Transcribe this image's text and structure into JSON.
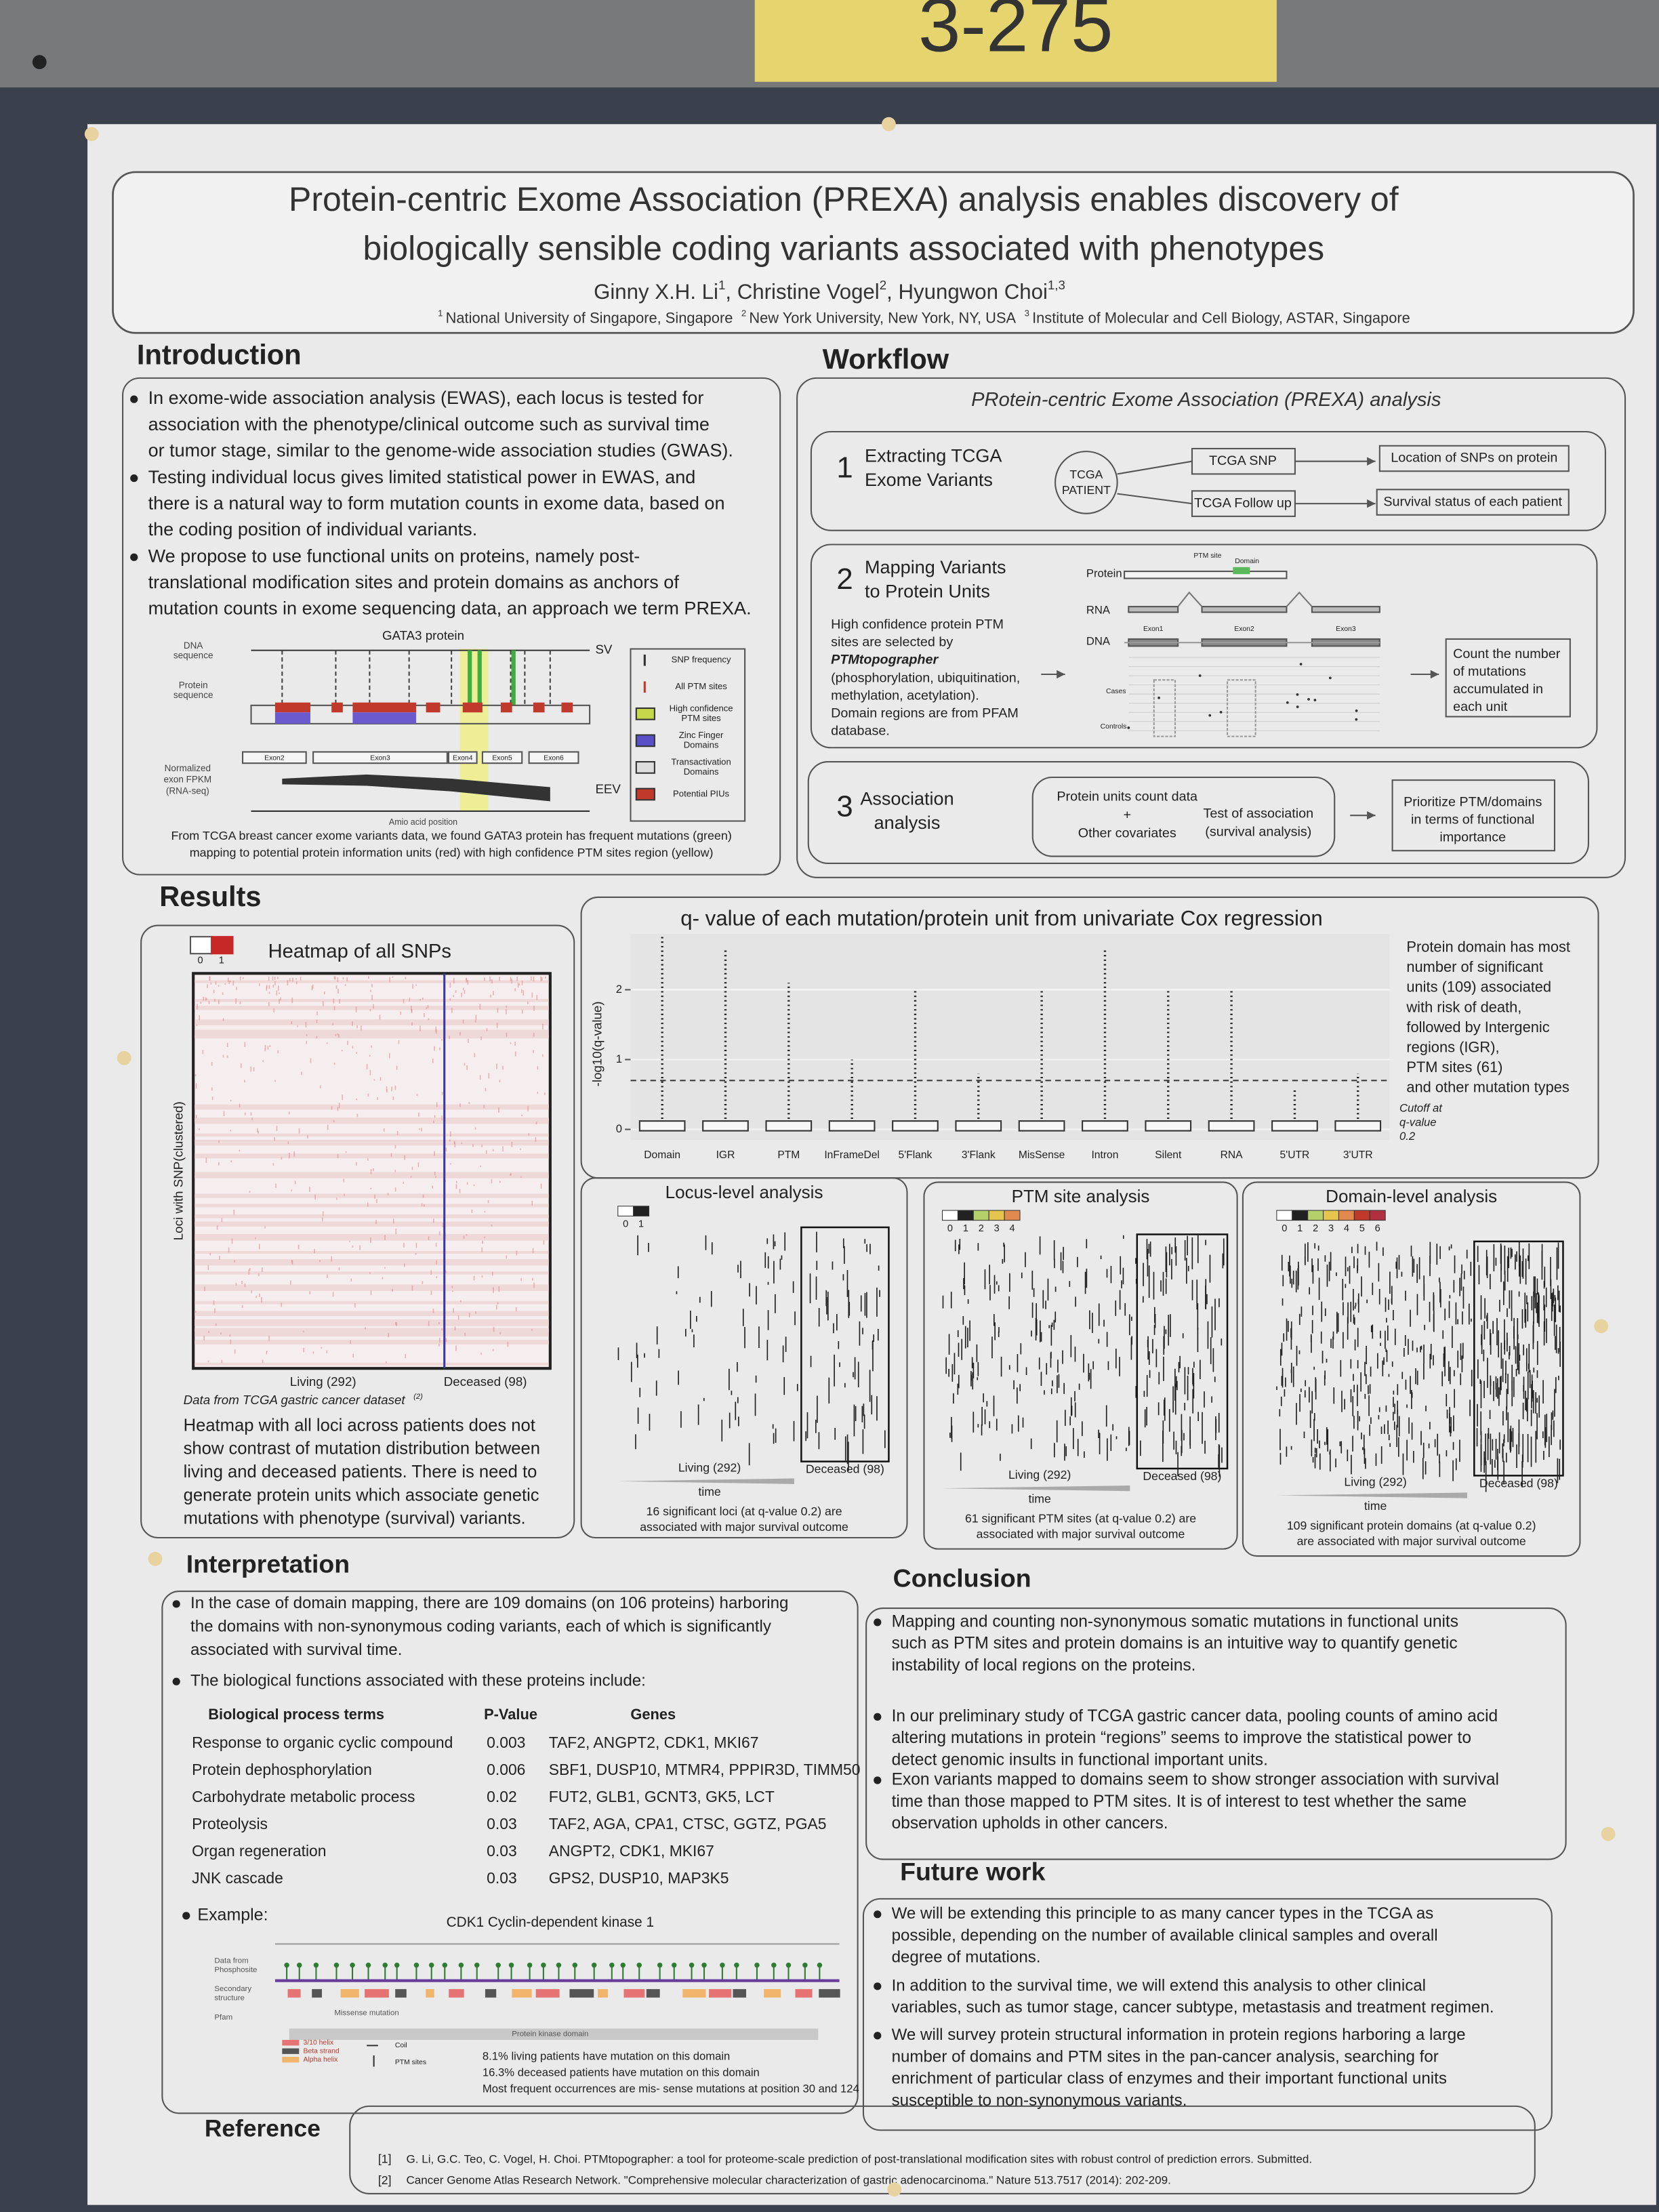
{
  "header": {
    "booth": "3-275",
    "title": [
      "Protein-centric Exome Association (PREXA) analysis enables discovery of",
      "biologically sensible coding variants associated with phenotypes"
    ],
    "authors": [
      {
        "name": "Ginny X.H. Li",
        "sup": "1"
      },
      {
        "name": ", Christine Vogel",
        "sup": "2"
      },
      {
        "name": ", Hyungwon Choi",
        "sup": "1,3"
      }
    ],
    "affiliations": [
      {
        "sup": "1",
        "text": "National University of Singapore, Singapore"
      },
      {
        "sup": "2",
        "text": "New York University, New York, NY, USA"
      },
      {
        "sup": "3",
        "text": "Institute of Molecular and Cell Biology, ASTAR, Singapore"
      }
    ]
  },
  "introduction": {
    "heading": "Introduction",
    "bullets": [
      [
        "In exome-wide association analysis (EWAS), each locus is tested for",
        "association with the phenotype/clinical outcome such as survival time",
        "or tumor stage, similar to the genome-wide association studies (GWAS)."
      ],
      [
        "Testing individual locus gives limited statistical power in EWAS, and",
        "there is a natural way to form mutation counts in exome data, based on",
        "the coding position of individual variants."
      ],
      [
        "We propose to use functional units on proteins, namely post-",
        "translational modification sites and protein domains as anchors of",
        "mutation counts in exome sequencing data, an approach we term PREXA."
      ]
    ],
    "figure": {
      "title": "GATA3 protein",
      "dna_label": [
        "DNA",
        "sequence"
      ],
      "protein_label": [
        "Protein",
        "sequence"
      ],
      "fpkm_label": [
        "Normalized",
        "exon FPKM",
        "(RNA-seq)"
      ],
      "sv_label": "SV",
      "eev_label": "EEV",
      "x_label": "Amio acid position",
      "exons": [
        "Exon2",
        "Exon3",
        "Exon4",
        "Exon5",
        "Exon6"
      ],
      "legend": [
        [
          "SNP frequency"
        ],
        [
          "All PTM sites"
        ],
        [
          "High confidence",
          "PTM sites"
        ],
        [
          "Zinc Finger",
          "Domains"
        ],
        [
          "Transactivation",
          "Domains"
        ],
        [
          "Potential PIUs"
        ]
      ],
      "caption": [
        "From TCGA breast cancer exome variants data, we found GATA3 protein has frequent mutations (green)",
        "mapping to potential protein information units (red) with high confidence PTM sites region (yellow)"
      ]
    }
  },
  "workflow": {
    "heading": "Workflow",
    "subtitle": "PRotein-centric Exome Association (PREXA) analysis",
    "step1": {
      "number": "1",
      "title": [
        "Extracting TCGA",
        "Exome Variants"
      ],
      "patient": [
        "TCGA",
        "PATIENT"
      ],
      "snp": "TCGA SNP",
      "follow_up": "TCGA Follow up",
      "snp_output": "Location of SNPs on protein",
      "follow_output": "Survival status of each patient"
    },
    "step2": {
      "number": "2",
      "title": [
        "Mapping Variants",
        "to Protein Units"
      ],
      "description": [
        "High confidence protein PTM",
        "sites are selected by"
      ],
      "tool": "PTMtopographer",
      "description2": [
        "(phosphorylation, ubiquitination,",
        "methylation, acetylation).",
        "Domain regions are from PFAM",
        "database."
      ],
      "protein": "Protein",
      "rna": "RNA",
      "dna": "DNA",
      "ptm_site": "PTM site",
      "domain": "Domain",
      "exons": [
        "Exon1",
        "Exon2",
        "Exon3"
      ],
      "cases": "Cases",
      "controls": "Controls",
      "output": [
        "Count the number",
        "of mutations",
        "accumulated in",
        "each unit"
      ]
    },
    "step3": {
      "number": "3",
      "title": [
        "Association",
        "analysis"
      ],
      "inputs": [
        "Protein units count data",
        "+",
        "Other covariates"
      ],
      "test": [
        "Test of association",
        "(survival analysis)"
      ],
      "output": [
        "Prioritize PTM/domains",
        "in terms of functional",
        "importance"
      ]
    }
  },
  "results": {
    "heading": "Results",
    "heatmap": {
      "title": "Heatmap of all SNPs",
      "scale": [
        "0",
        "1"
      ],
      "y_label": "Loci with SNP(clustered)",
      "living": "Living (292)",
      "deceased": "Deceased (98)",
      "source": "Data from TCGA gastric cancer dataset",
      "source_ref": "(2)",
      "text": [
        "Heatmap with all loci across patients does not",
        "show contrast of mutation distribution between",
        "living and deceased patients. There is need to",
        "generate protein units which associate genetic",
        "mutations with phenotype (survival) variants."
      ]
    },
    "qvalue": {
      "title": "q- value of each mutation/protein unit from univariate Cox regression",
      "y_label": "-log10(q-value)",
      "ylim": [
        -0.15,
        2.8
      ],
      "yticks": [
        0,
        1,
        2
      ],
      "categories": [
        "Domain",
        "IGR",
        "PTM",
        "InFrameDel",
        "5'Flank",
        "3'Flank",
        "MisSense",
        "Intron",
        "Silent",
        "RNA",
        "5'UTR",
        "3'UTR"
      ],
      "max_values": [
        2.8,
        2.6,
        2.1,
        1.0,
        2.0,
        0.8,
        2.0,
        2.6,
        2.0,
        2.0,
        0.6,
        0.8
      ],
      "cutoff_line": 0.7,
      "cutoff": [
        "Cutoff at",
        "q-value",
        "0.2"
      ],
      "note": [
        "Protein domain has most",
        "number of significant",
        "units (109) associated",
        "with risk of death,",
        "followed by Intergenic",
        "regions (IGR),",
        "PTM sites (61)",
        "and other mutation types"
      ]
    },
    "locus": {
      "title": "Locus-level analysis",
      "scale": [
        "0",
        "1"
      ],
      "living": "Living (292)",
      "deceased": "Deceased (98)",
      "time": "time",
      "caption": [
        "16 significant loci (at q-value 0.2) are",
        "associated with major survival outcome"
      ]
    },
    "ptm": {
      "title": "PTM site analysis",
      "scale": [
        "0",
        "1",
        "2",
        "3",
        "4"
      ],
      "living": "Living (292)",
      "deceased": "Deceased (98)",
      "time": "time",
      "caption": [
        "61 significant PTM sites (at q-value 0.2) are",
        "associated with major survival outcome"
      ]
    },
    "domain": {
      "title": "Domain-level analysis",
      "scale": [
        "0",
        "1",
        "2",
        "3",
        "4",
        "5",
        "6"
      ],
      "living": "Living (292)",
      "deceased": "Deceased (98)",
      "time": "time",
      "caption": [
        "109 significant protein domains (at q-value 0.2)",
        "are associated with major survival outcome"
      ]
    }
  },
  "interpretation": {
    "heading": "Interpretation",
    "bullets": [
      [
        "In the case of domain mapping, there are 109 domains (on 106 proteins) harboring",
        "the domains with non-synonymous coding variants, each of which is significantly",
        "associated with survival time."
      ],
      [
        "The biological functions associated with these proteins include:"
      ]
    ],
    "table": {
      "header": [
        "Biological process terms",
        "P-Value",
        "Genes"
      ],
      "rows": [
        [
          "Response to organic cyclic compound",
          "0.003",
          "TAF2, ANGPT2, CDK1, MKI67"
        ],
        [
          "Protein dephosphorylation",
          "0.006",
          "SBF1, DUSP10, MTMR4, PPPIR3D, TIMM50"
        ],
        [
          "Carbohydrate metabolic process",
          "0.02",
          "FUT2, GLB1, GCNT3, GK5, LCT"
        ],
        [
          "Proteolysis",
          "0.03",
          "TAF2, AGA, CPA1, CTSC, GGTZ, PGA5"
        ],
        [
          "Organ regeneration",
          "0.03",
          "ANGPT2, CDK1, MKI67"
        ],
        [
          "JNK cascade",
          "0.03",
          "GPS2, DUSP10, MAP3K5"
        ]
      ]
    },
    "example": {
      "label": "Example:",
      "title": "CDK1 Cyclin-dependent kinase 1",
      "row_labels": [
        [
          "Data from",
          "Phosphosite"
        ],
        [
          "Secondary",
          "structure"
        ],
        [
          "Pfam"
        ]
      ],
      "missense": "Missense mutation",
      "domain": "Protein kinase domain",
      "legend": [
        "3/10 helix",
        "Beta strand",
        "Alpha helix",
        "Coil",
        "PTM sites"
      ],
      "notes": [
        "8.1% living patients have mutation on this domain",
        "16.3% deceased patients have mutation on this domain",
        "Most frequent occurrences are mis- sense mutations at position 30 and 124"
      ]
    }
  },
  "conclusion": {
    "heading": "Conclusion",
    "bullets": [
      [
        "Mapping and counting non-synonymous somatic mutations in functional units",
        "such as PTM sites and protein domains is an intuitive way to quantify genetic",
        "instability of local regions on the proteins."
      ],
      [
        "In our preliminary study of TCGA gastric cancer data, pooling counts of amino acid",
        "altering mutations in protein “regions” seems to improve the statistical power to",
        "detect genomic insults in functional important units."
      ],
      [
        "Exon variants mapped to domains seem to show stronger association with survival",
        "time than those mapped to PTM sites. It is of interest to test whether the same",
        "observation upholds in other cancers."
      ]
    ]
  },
  "future_work": {
    "heading": "Future work",
    "bullets": [
      [
        "We will be extending this principle to as many cancer types in the TCGA as",
        "possible, depending on the number of available clinical samples and overall",
        "degree of mutations."
      ],
      [
        "In addition to the survival time, we will extend this analysis to other clinical",
        "variables, such as tumor stage, cancer subtype, metastasis and treatment regimen."
      ],
      [
        "We will survey protein structural information in protein regions harboring a large",
        "number of domains and PTM sites in the pan-cancer analysis, searching for",
        "enrichment of particular class of enzymes and their important functional units",
        "susceptible to non-synonymous variants."
      ]
    ]
  },
  "reference": {
    "heading": "Reference",
    "items": [
      {
        "number": "[1]",
        "text": "G. Li, G.C. Teo, C. Vogel, H. Choi. PTMtopographer: a tool for proteome-scale prediction of post-translational modification sites with robust control of prediction errors. Submitted."
      },
      {
        "number": "[2]",
        "text": "Cancer Genome Atlas Research Network. \"Comprehensive molecular characterization of gastric adenocarcinoma.\" Nature 513.7517 (2014): 202-209."
      }
    ]
  }
}
